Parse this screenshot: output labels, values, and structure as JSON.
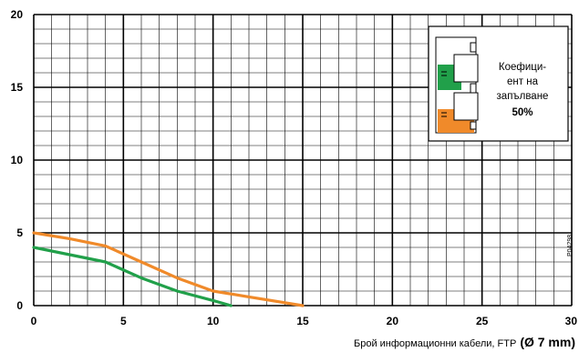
{
  "chart_data": {
    "type": "line",
    "xlim": [
      0,
      30
    ],
    "ylim": [
      0,
      20
    ],
    "x_ticks": [
      "0",
      "5",
      "10",
      "15",
      "20",
      "25",
      "30"
    ],
    "y_ticks": [
      "0",
      "5",
      "10",
      "15",
      "20"
    ],
    "grid": true,
    "xlabel": "Брой информационни кабели, FTP",
    "xlabel_bold": "(Ø 7 mm)",
    "colors": {
      "orange": "#f08a2a",
      "green": "#21a04a"
    },
    "series": [
      {
        "color": "orange",
        "x": [
          0,
          2,
          4,
          6,
          8,
          10,
          12,
          15
        ],
        "y": [
          5,
          4.6,
          4.1,
          3.0,
          1.9,
          1.0,
          0.6,
          0
        ]
      },
      {
        "color": "green",
        "x": [
          0,
          2,
          4,
          6,
          8,
          10,
          11
        ],
        "y": [
          4,
          3.5,
          3.0,
          1.9,
          1.0,
          0.35,
          0
        ]
      }
    ],
    "legend": {
      "position": "top-right",
      "line1": "Коефици-",
      "line2": "ент на",
      "line3": "запълване",
      "value": "50%"
    },
    "code": "P04298"
  }
}
